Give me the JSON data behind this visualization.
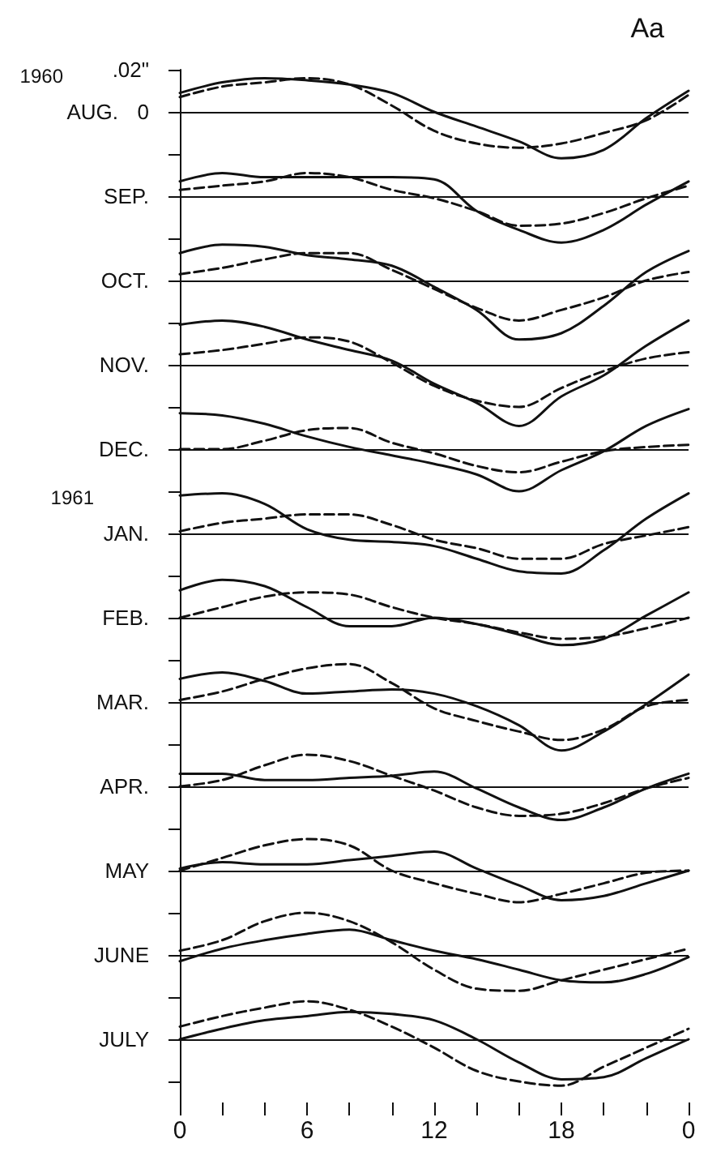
{
  "chart_data": {
    "type": "line",
    "title": "Aa",
    "line_style": "solid",
    "marker": "none",
    "categories": [
      "0",
      null,
      null,
      "6",
      null,
      null,
      "12",
      null,
      null,
      "18",
      null,
      null,
      "0"
    ],
    "ylim": [
      -0.47,
      0.02
    ],
    "yticks": [
      {
        "value": 0.02,
        "label": ".02\""
      },
      0,
      {
        "value": -0.02,
        "label": null
      },
      {
        "value": -0.04,
        "label": null
      },
      {
        "value": -0.06,
        "label": null
      },
      {
        "value": -0.08,
        "label": null
      },
      {
        "value": -0.1,
        "label": null
      },
      {
        "value": -0.12,
        "label": null
      },
      {
        "value": -0.14,
        "label": null
      },
      {
        "value": -0.16,
        "label": null
      },
      {
        "value": -0.18,
        "label": null
      },
      {
        "value": -0.2,
        "label": null
      },
      {
        "value": -0.22,
        "label": null
      },
      {
        "value": -0.24,
        "label": null
      },
      {
        "value": -0.26,
        "label": null
      },
      {
        "value": -0.28,
        "label": null
      },
      {
        "value": -0.3,
        "label": null
      },
      {
        "value": -0.32,
        "label": null
      },
      {
        "value": -0.34,
        "label": null
      },
      {
        "value": -0.36,
        "label": null
      },
      {
        "value": -0.38,
        "label": null
      },
      {
        "value": -0.4,
        "label": null
      },
      {
        "value": -0.42,
        "label": null
      },
      {
        "value": -0.44,
        "label": null
      },
      {
        "value": -0.46,
        "label": null
      }
    ],
    "ref_lines": [
      {
        "axis": "y",
        "value": 0,
        "label": "1960\nAUG.",
        "color": "#111111"
      },
      {
        "axis": "y",
        "value": -0.04,
        "label": "SEP.",
        "color": "#111111"
      },
      {
        "axis": "y",
        "value": -0.08,
        "label": "OCT.",
        "color": "#111111"
      },
      {
        "axis": "y",
        "value": -0.12,
        "label": "NOV.",
        "color": "#111111"
      },
      {
        "axis": "y",
        "value": -0.16,
        "label": "DEC.",
        "color": "#111111"
      },
      {
        "axis": "y",
        "value": -0.2,
        "label": "1961\nJAN.",
        "color": "#111111"
      },
      {
        "axis": "y",
        "value": -0.24,
        "label": "FEB.",
        "color": "#111111"
      },
      {
        "axis": "y",
        "value": -0.28,
        "label": "MAR.",
        "color": "#111111"
      },
      {
        "axis": "y",
        "value": -0.32,
        "label": "APR.",
        "color": "#111111"
      },
      {
        "axis": "y",
        "value": -0.36,
        "label": "MAY",
        "color": "#111111"
      },
      {
        "axis": "y",
        "value": -0.4,
        "label": "JUNE",
        "color": "#111111"
      },
      {
        "axis": "y",
        "value": -0.44,
        "label": "JULY",
        "color": "#111111"
      }
    ],
    "series": [
      {
        "color": "#111111",
        "values": [
          0.009,
          0.014,
          0.016,
          0.015,
          0.013,
          0.009,
          0.0,
          -0.007,
          -0.014,
          -0.022,
          -0.018,
          -0.003,
          0.01
        ]
      },
      {
        "color": "#111111",
        "line_style": "dashed",
        "values": [
          0.007,
          0.012,
          0.014,
          0.016,
          0.013,
          0.003,
          -0.009,
          -0.015,
          -0.017,
          -0.015,
          -0.01,
          -0.004,
          0.008
        ]
      },
      {
        "color": "#111111",
        "values": [
          -0.033,
          -0.029,
          -0.031,
          -0.031,
          -0.031,
          -0.031,
          -0.032,
          -0.047,
          -0.056,
          -0.062,
          -0.056,
          -0.044,
          -0.033
        ]
      },
      {
        "color": "#111111",
        "line_style": "dashed",
        "values": [
          -0.037,
          -0.035,
          -0.033,
          -0.029,
          -0.031,
          -0.037,
          -0.041,
          -0.047,
          -0.054,
          -0.053,
          -0.048,
          -0.041,
          -0.035
        ]
      },
      {
        "color": "#111111",
        "values": [
          -0.067,
          -0.063,
          -0.064,
          -0.068,
          -0.07,
          -0.073,
          -0.083,
          -0.094,
          -0.108,
          -0.105,
          -0.092,
          -0.076,
          -0.066
        ]
      },
      {
        "color": "#111111",
        "line_style": "dashed",
        "values": [
          -0.077,
          -0.074,
          -0.07,
          -0.067,
          -0.067,
          -0.075,
          -0.084,
          -0.093,
          -0.099,
          -0.094,
          -0.088,
          -0.08,
          -0.076
        ]
      },
      {
        "color": "#111111",
        "values": [
          -0.101,
          -0.099,
          -0.102,
          -0.108,
          -0.113,
          -0.118,
          -0.129,
          -0.138,
          -0.149,
          -0.135,
          -0.125,
          -0.111,
          -0.099
        ]
      },
      {
        "color": "#111111",
        "line_style": "dashed",
        "values": [
          -0.115,
          -0.113,
          -0.11,
          -0.107,
          -0.109,
          -0.119,
          -0.13,
          -0.137,
          -0.14,
          -0.131,
          -0.123,
          -0.117,
          -0.114
        ]
      },
      {
        "color": "#111111",
        "values": [
          -0.143,
          -0.144,
          -0.148,
          -0.154,
          -0.159,
          -0.163,
          -0.167,
          -0.172,
          -0.18,
          -0.17,
          -0.161,
          -0.149,
          -0.141
        ]
      },
      {
        "color": "#111111",
        "line_style": "dashed",
        "values": [
          -0.16,
          -0.16,
          -0.156,
          -0.151,
          -0.15,
          -0.157,
          -0.162,
          -0.168,
          -0.171,
          -0.166,
          -0.161,
          -0.159,
          -0.158
        ]
      },
      {
        "color": "#111111",
        "values": [
          -0.182,
          -0.181,
          -0.186,
          -0.198,
          -0.203,
          -0.204,
          -0.206,
          -0.212,
          -0.218,
          -0.219,
          -0.208,
          -0.193,
          -0.181
        ]
      },
      {
        "color": "#111111",
        "line_style": "dashed",
        "values": [
          -0.199,
          -0.195,
          -0.193,
          -0.191,
          -0.191,
          -0.196,
          -0.203,
          -0.207,
          -0.212,
          -0.212,
          -0.205,
          -0.201,
          -0.197
        ]
      },
      {
        "color": "#111111",
        "values": [
          -0.227,
          -0.222,
          -0.225,
          -0.235,
          -0.244,
          -0.244,
          -0.24,
          -0.243,
          -0.248,
          -0.253,
          -0.25,
          -0.239,
          -0.228
        ]
      },
      {
        "color": "#111111",
        "line_style": "dashed",
        "values": [
          -0.24,
          -0.235,
          -0.23,
          -0.228,
          -0.229,
          -0.235,
          -0.24,
          -0.243,
          -0.247,
          -0.25,
          -0.249,
          -0.245,
          -0.24
        ]
      },
      {
        "color": "#111111",
        "values": [
          -0.269,
          -0.266,
          -0.27,
          -0.276,
          -0.275,
          -0.274,
          -0.276,
          -0.282,
          -0.291,
          -0.303,
          -0.294,
          -0.281,
          -0.267
        ]
      },
      {
        "color": "#111111",
        "line_style": "dashed",
        "values": [
          -0.279,
          -0.275,
          -0.269,
          -0.264,
          -0.262,
          -0.271,
          -0.283,
          -0.289,
          -0.294,
          -0.298,
          -0.293,
          -0.282,
          -0.279
        ]
      },
      {
        "color": "#111111",
        "values": [
          -0.314,
          -0.314,
          -0.317,
          -0.317,
          -0.316,
          -0.315,
          -0.313,
          -0.321,
          -0.33,
          -0.336,
          -0.33,
          -0.321,
          -0.314
        ]
      },
      {
        "color": "#111111",
        "line_style": "dashed",
        "values": [
          -0.32,
          -0.317,
          -0.31,
          -0.305,
          -0.308,
          -0.315,
          -0.322,
          -0.33,
          -0.334,
          -0.333,
          -0.328,
          -0.321,
          -0.316
        ]
      },
      {
        "color": "#111111",
        "values": [
          -0.359,
          -0.356,
          -0.357,
          -0.357,
          -0.355,
          -0.353,
          -0.351,
          -0.359,
          -0.367,
          -0.374,
          -0.372,
          -0.366,
          -0.36
        ]
      },
      {
        "color": "#111111",
        "line_style": "dashed",
        "values": [
          -0.36,
          -0.354,
          -0.348,
          -0.345,
          -0.348,
          -0.36,
          -0.366,
          -0.371,
          -0.375,
          -0.371,
          -0.366,
          -0.361,
          -0.36
        ]
      },
      {
        "color": "#111111",
        "values": [
          -0.403,
          -0.397,
          -0.393,
          -0.39,
          -0.388,
          -0.393,
          -0.398,
          -0.402,
          -0.407,
          -0.412,
          -0.413,
          -0.409,
          -0.401
        ]
      },
      {
        "color": "#111111",
        "line_style": "dashed",
        "values": [
          -0.398,
          -0.393,
          -0.384,
          -0.38,
          -0.384,
          -0.394,
          -0.407,
          -0.416,
          -0.417,
          -0.412,
          -0.407,
          -0.402,
          -0.397
        ]
      },
      {
        "color": "#111111",
        "values": [
          -0.44,
          -0.435,
          -0.431,
          -0.429,
          -0.427,
          -0.428,
          -0.431,
          -0.44,
          -0.451,
          -0.459,
          -0.458,
          -0.449,
          -0.44
        ]
      },
      {
        "color": "#111111",
        "line_style": "dashed",
        "values": [
          -0.434,
          -0.429,
          -0.425,
          -0.422,
          -0.426,
          -0.434,
          -0.444,
          -0.455,
          -0.46,
          -0.462,
          -0.453,
          -0.444,
          -0.435
        ]
      }
    ]
  }
}
